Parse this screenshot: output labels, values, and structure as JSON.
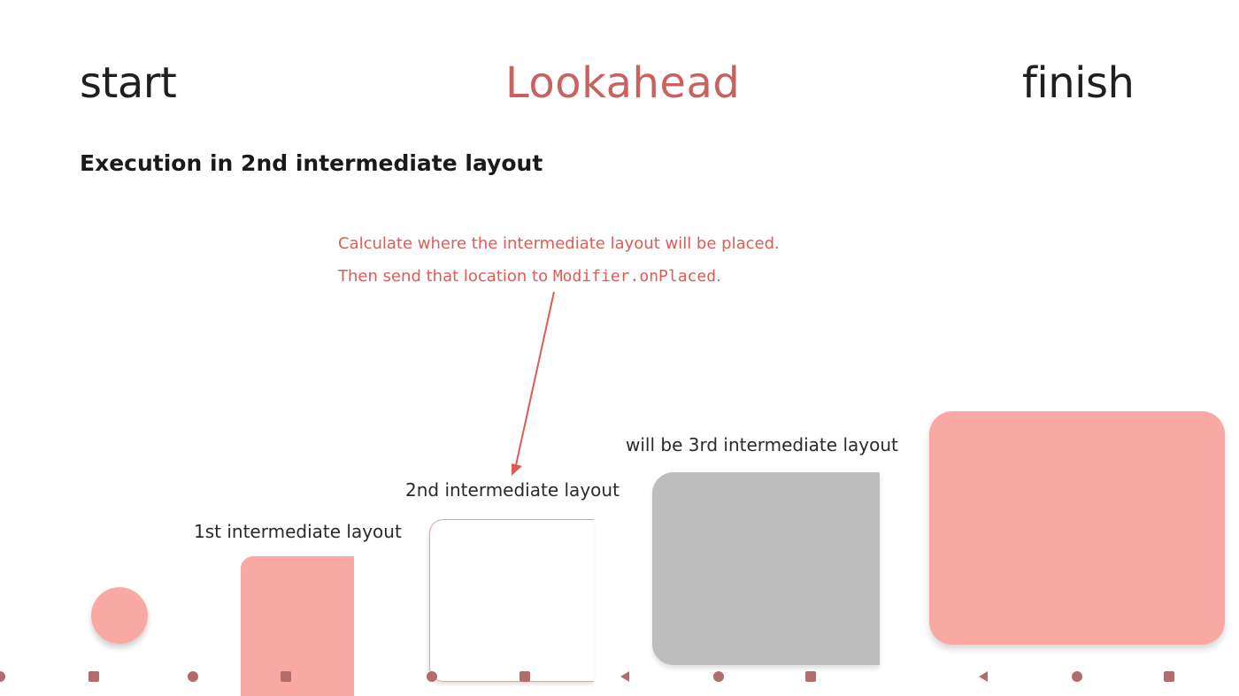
{
  "header": {
    "start": "start",
    "title": "Lookahead",
    "finish": "finish"
  },
  "subtitle": "Execution in 2nd intermediate layout",
  "annotation": {
    "line1": "Calculate where the intermediate layout will be placed.",
    "line2_prefix": "Then send that location to ",
    "line2_code": "Modifier.onPlaced",
    "line2_suffix": "."
  },
  "labels": {
    "first": "1st intermediate layout",
    "second": "2nd intermediate layout",
    "third": "will be 3rd intermediate layout"
  },
  "colors": {
    "accent": "#c9625f",
    "annotation": "#e05b55",
    "pink": "#f9a8a4",
    "gray": "#bdbdbd",
    "nav": "#b36b6b"
  }
}
